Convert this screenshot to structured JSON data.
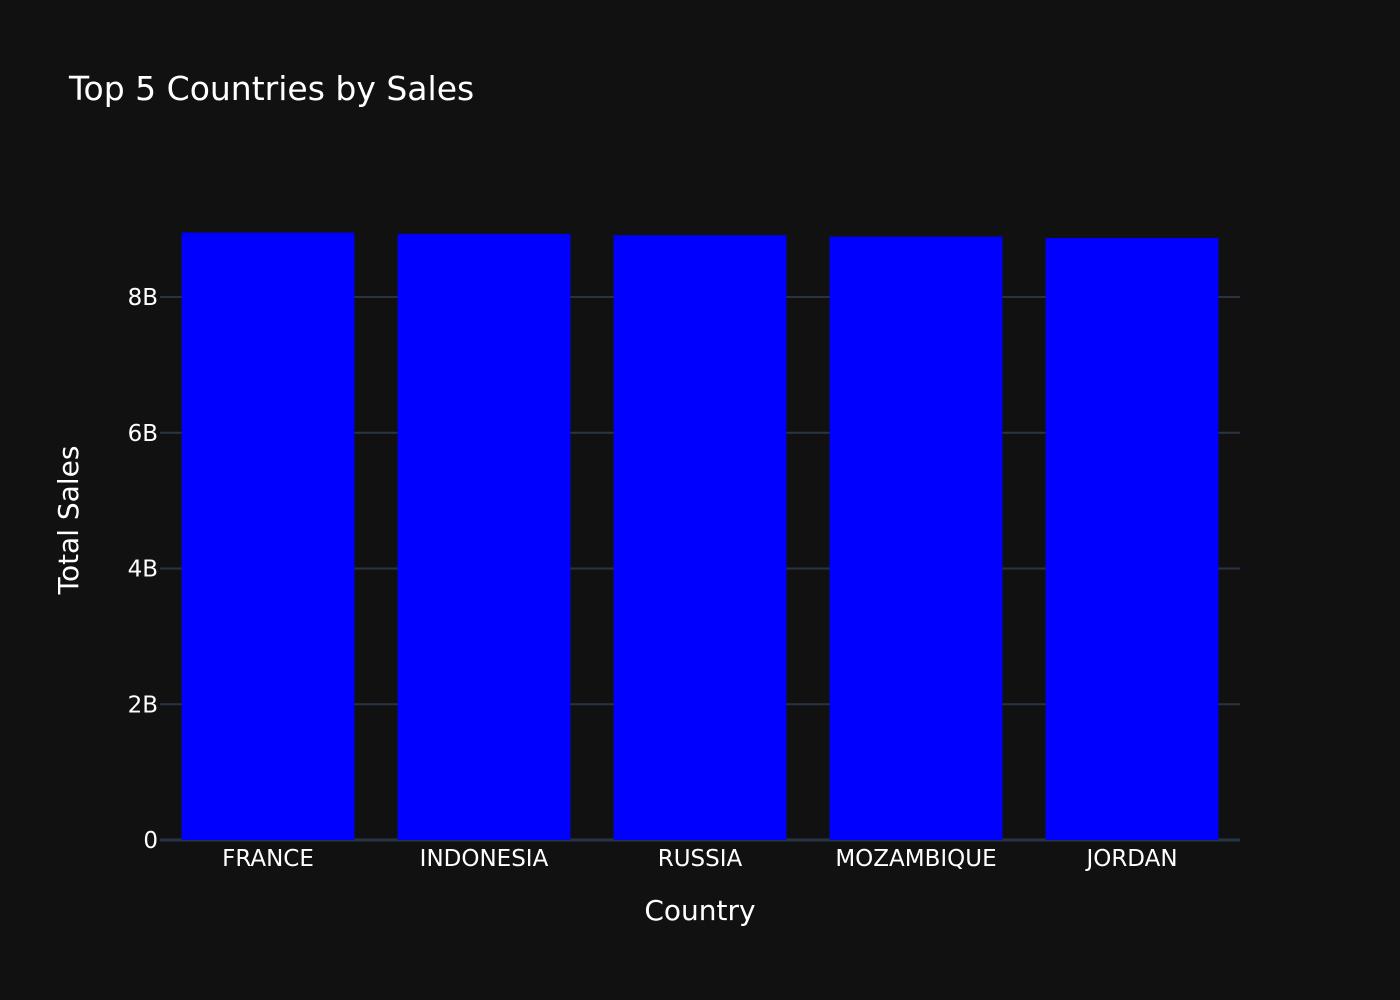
{
  "chart_data": {
    "type": "bar",
    "title": "Top 5 Countries by Sales",
    "xlabel": "Country",
    "ylabel": "Total Sales",
    "categories": [
      "FRANCE",
      "INDONESIA",
      "RUSSIA",
      "MOZAMBIQUE",
      "JORDAN"
    ],
    "values": [
      8950000000,
      8930000000,
      8910000000,
      8890000000,
      8870000000
    ],
    "ylim": [
      0,
      9000000000
    ],
    "yticks": [
      0,
      2000000000,
      4000000000,
      6000000000,
      8000000000
    ],
    "ytick_labels": [
      "0",
      "2B",
      "4B",
      "6B",
      "8B"
    ],
    "grid": true,
    "legend": "none"
  },
  "colors": {
    "background": "#111111",
    "bar": "#0000ff",
    "grid": "#283442",
    "text": "#ffffff"
  }
}
